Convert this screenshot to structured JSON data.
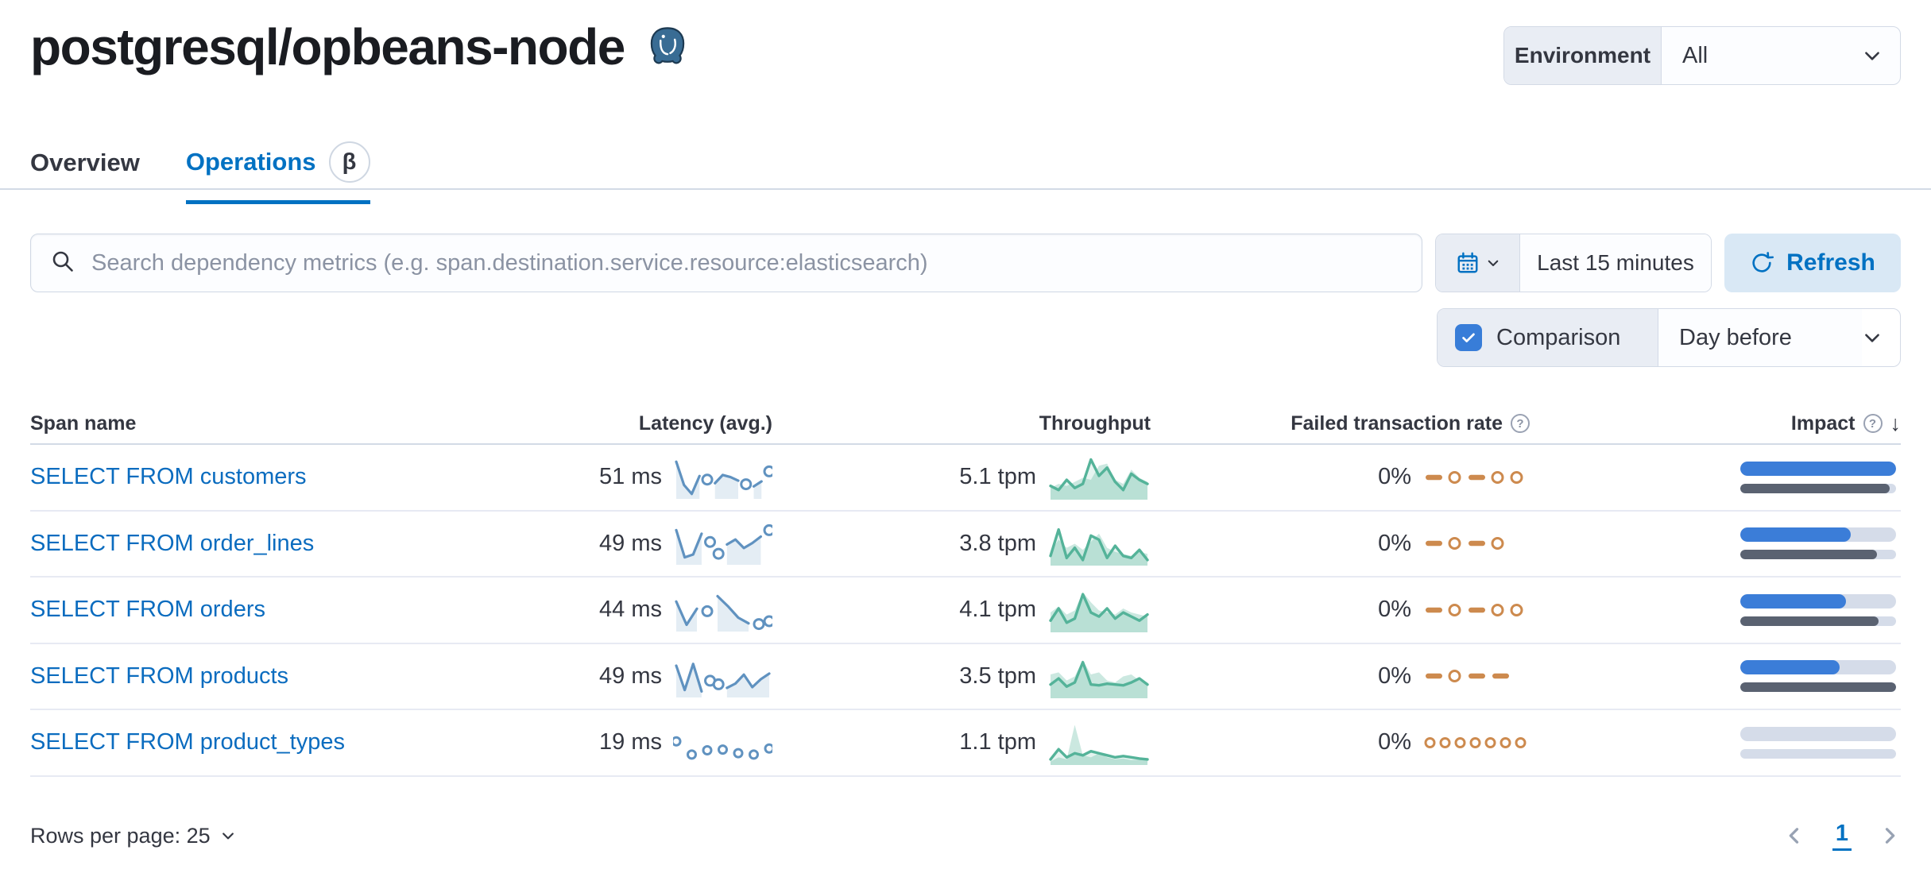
{
  "header": {
    "title": "postgresql/opbeans-node",
    "icon": "postgresql-logo",
    "environment": {
      "label": "Environment",
      "value": "All"
    }
  },
  "tabs": [
    {
      "label": "Overview",
      "active": false
    },
    {
      "label": "Operations",
      "active": true,
      "badge": "β"
    }
  ],
  "toolbar": {
    "search_placeholder": "Search dependency metrics (e.g. span.destination.service.resource:elasticsearch)",
    "time_range": "Last 15 minutes",
    "refresh_label": "Refresh",
    "comparison_label": "Comparison",
    "comparison_checked": true,
    "comparison_value": "Day before"
  },
  "table": {
    "columns": [
      "Span name",
      "Latency (avg.)",
      "Throughput",
      "Failed transaction rate",
      "Impact"
    ],
    "sort": {
      "column": "Impact",
      "direction": "desc"
    },
    "rows": [
      {
        "span_name": "SELECT FROM customers",
        "latency": "51 ms",
        "throughput": "5.1 tpm",
        "failed_rate": "0%",
        "impact_current_pct": 100,
        "impact_previous_pct": 96,
        "latency_trend": [
          95,
          30,
          5,
          55,
          45,
          35,
          58,
          52,
          42,
          32,
          26,
          40,
          68
        ],
        "latency_dots": [
          4,
          9,
          12
        ],
        "throughput_trend": [
          30,
          20,
          45,
          25,
          35,
          95,
          55,
          75,
          40,
          20,
          60,
          45,
          35
        ],
        "throughput_prev": [
          25,
          35,
          30,
          40,
          50,
          45,
          80,
          85,
          45,
          35,
          70,
          50,
          40
        ],
        "failed_pattern": [
          "dash",
          "dot",
          "dash",
          "dot",
          "dot"
        ]
      },
      {
        "span_name": "SELECT FROM order_lines",
        "latency": "49 ms",
        "throughput": "3.8 tpm",
        "failed_rate": "0%",
        "impact_current_pct": 71,
        "impact_previous_pct": 88,
        "latency_trend": [
          88,
          12,
          20,
          78,
          55,
          22,
          48,
          62,
          38,
          52,
          70,
          88
        ],
        "latency_dots": [
          4,
          5,
          11
        ],
        "throughput_trend": [
          20,
          85,
          15,
          40,
          10,
          70,
          60,
          15,
          45,
          20,
          15,
          35,
          10
        ],
        "throughput_prev": [
          30,
          60,
          40,
          50,
          35,
          55,
          75,
          40,
          30,
          25,
          20,
          30,
          25
        ],
        "failed_pattern": [
          "dash",
          "dot",
          "dash",
          "dot"
        ]
      },
      {
        "span_name": "SELECT FROM orders",
        "latency": "44 ms",
        "throughput": "4.1 tpm",
        "failed_rate": "0%",
        "impact_current_pct": 68,
        "impact_previous_pct": 89,
        "latency_trend": [
          75,
          10,
          55,
          48,
          90,
          62,
          30,
          14,
          12,
          20
        ],
        "latency_dots": [
          3,
          8,
          9
        ],
        "throughput_trend": [
          25,
          55,
          20,
          30,
          90,
          45,
          35,
          55,
          30,
          45,
          35,
          25,
          40
        ],
        "throughput_prev": [
          45,
          60,
          40,
          50,
          95,
          70,
          50,
          45,
          40,
          55,
          45,
          40,
          35
        ],
        "failed_pattern": [
          "dash",
          "dot",
          "dash",
          "dot",
          "dot"
        ]
      },
      {
        "span_name": "SELECT FROM products",
        "latency": "49 ms",
        "throughput": "3.5 tpm",
        "failed_rate": "0%",
        "impact_current_pct": 64,
        "impact_previous_pct": 100,
        "latency_trend": [
          80,
          12,
          85,
          8,
          38,
          28,
          18,
          30,
          55,
          20,
          42,
          58
        ],
        "latency_dots": [
          4,
          5
        ],
        "throughput_trend": [
          30,
          45,
          25,
          35,
          85,
          30,
          28,
          32,
          30,
          28,
          35,
          45,
          30
        ],
        "throughput_prev": [
          55,
          60,
          40,
          50,
          90,
          55,
          60,
          40,
          35,
          50,
          55,
          40,
          35
        ],
        "failed_pattern": [
          "dash",
          "dot",
          "dash",
          "dash"
        ]
      },
      {
        "span_name": "SELECT FROM product_types",
        "latency": "19 ms",
        "throughput": "1.1 tpm",
        "failed_rate": "0%",
        "impact_current_pct": 0,
        "impact_previous_pct": 0,
        "latency_trend": [
          55,
          18,
          30,
          32,
          22,
          18,
          35
        ],
        "latency_dots": [
          0,
          1,
          2,
          3,
          4,
          5,
          6
        ],
        "throughput_trend": [
          10,
          35,
          15,
          25,
          20,
          30,
          25,
          20,
          15,
          18,
          15,
          12,
          10
        ],
        "throughput_prev": [
          5,
          15,
          10,
          95,
          20,
          15,
          25,
          15,
          10,
          12,
          8,
          10,
          8
        ],
        "failed_pattern": [
          "dot",
          "dot",
          "dot",
          "dot",
          "dot",
          "dot",
          "dot"
        ]
      }
    ]
  },
  "footer": {
    "rows_per_page_label": "Rows per page: 25",
    "page": "1"
  },
  "colors": {
    "link": "#0071c2",
    "latency_spark": "#6092c0",
    "throughput_spark": "#54b399",
    "failed_spark": "#cd8a4e",
    "impact_current": "#3b7dd8",
    "impact_previous": "#5a6271"
  }
}
